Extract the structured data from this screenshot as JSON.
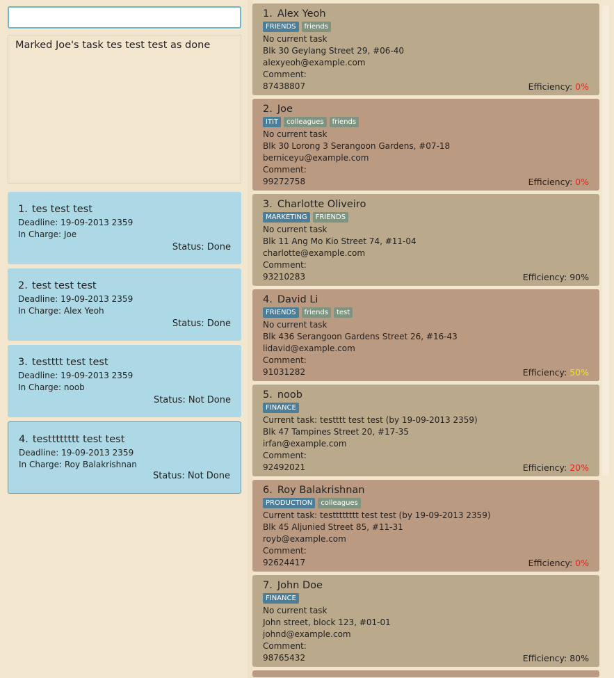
{
  "command_box": {
    "value": "",
    "placeholder": ""
  },
  "result": {
    "message": "Marked Joe's task tes test test as done"
  },
  "tasks": [
    {
      "index": "1.",
      "title": "tes test test",
      "deadline": "Deadline: 19-09-2013 2359",
      "in_charge": "In Charge: Joe",
      "status": "Status: Done"
    },
    {
      "index": "2.",
      "title": "test test test",
      "deadline": "Deadline: 19-09-2013 2359",
      "in_charge": "In Charge: Alex Yeoh",
      "status": "Status: Done"
    },
    {
      "index": "3.",
      "title": "testttt test test",
      "deadline": "Deadline: 19-09-2013 2359",
      "in_charge": "In Charge: noob",
      "status": "Status: Not Done"
    },
    {
      "index": "4.",
      "title": "testttttttt test test",
      "deadline": "Deadline: 19-09-2013 2359",
      "in_charge": "In Charge: Roy Balakrishnan",
      "status": "Status: Not Done"
    }
  ],
  "persons": [
    {
      "index": "1.",
      "name": "Alex Yeoh",
      "tags": [
        {
          "label": "FRIENDS",
          "color": "#4d7e97"
        },
        {
          "label": "friends",
          "color": "#7f9480"
        }
      ],
      "task": "No current task",
      "address": "Blk 30 Geylang Street 29, #06-40",
      "email": "alexyeoh@example.com",
      "comment": "Comment:",
      "phone": "87438807",
      "efficiency_label": "Efficiency:",
      "efficiency": "0%",
      "eff_color": "red"
    },
    {
      "index": "2.",
      "name": "Joe",
      "tags": [
        {
          "label": "ITIT",
          "color": "#4d7e97"
        },
        {
          "label": "colleagues",
          "color": "#7f9480"
        },
        {
          "label": "friends",
          "color": "#7f9480"
        }
      ],
      "task": "No current task",
      "address": "Blk 30 Lorong 3 Serangoon Gardens, #07-18",
      "email": "berniceyu@example.com",
      "comment": "Comment:",
      "phone": "99272758",
      "efficiency_label": "Efficiency:",
      "efficiency": "0%",
      "eff_color": "red"
    },
    {
      "index": "3.",
      "name": "Charlotte Oliveiro",
      "tags": [
        {
          "label": "MARKETING",
          "color": "#4d7e97"
        },
        {
          "label": "FRIENDS",
          "color": "#7f9480"
        }
      ],
      "task": "No current task",
      "address": "Blk 11 Ang Mo Kio Street 74, #11-04",
      "email": "charlotte@example.com",
      "comment": "Comment:",
      "phone": "93210283",
      "efficiency_label": "Efficiency:",
      "efficiency": "90%",
      "eff_color": "normal"
    },
    {
      "index": "4.",
      "name": "David Li",
      "tags": [
        {
          "label": "FRIENDS",
          "color": "#4d7e97"
        },
        {
          "label": "friends",
          "color": "#7f9480"
        },
        {
          "label": "test",
          "color": "#7f9480"
        }
      ],
      "task": "No current task",
      "address": "Blk 436 Serangoon Gardens Street 26, #16-43",
      "email": "lidavid@example.com",
      "comment": "Comment:",
      "phone": "91031282",
      "efficiency_label": "Efficiency:",
      "efficiency": "50%",
      "eff_color": "yellow"
    },
    {
      "index": "5.",
      "name": "noob",
      "tags": [
        {
          "label": "FINANCE",
          "color": "#4d7e97"
        }
      ],
      "task": "Current task: testttt test test (by 19-09-2013 2359)",
      "address": "Blk 47 Tampines Street 20, #17-35",
      "email": "irfan@example.com",
      "comment": "Comment:",
      "phone": "92492021",
      "efficiency_label": "Efficiency:",
      "efficiency": "20%",
      "eff_color": "red"
    },
    {
      "index": "6.",
      "name": "Roy Balakrishnan",
      "tags": [
        {
          "label": "PRODUCTION",
          "color": "#4d7e97"
        },
        {
          "label": "colleagues",
          "color": "#7f9480"
        }
      ],
      "task": "Current task: testttttttt test test (by 19-09-2013 2359)",
      "address": "Blk 45 Aljunied Street 85, #11-31",
      "email": "royb@example.com",
      "comment": "Comment:",
      "phone": "92624417",
      "efficiency_label": "Efficiency:",
      "efficiency": "0%",
      "eff_color": "red"
    },
    {
      "index": "7.",
      "name": "John Doe",
      "tags": [
        {
          "label": "FINANCE",
          "color": "#4d7e97"
        }
      ],
      "task": "No current task",
      "address": "John street, block 123, #01-01",
      "email": "johnd@example.com",
      "comment": "Comment:",
      "phone": "98765432",
      "efficiency_label": "Efficiency:",
      "efficiency": "80%",
      "eff_color": "normal"
    }
  ]
}
